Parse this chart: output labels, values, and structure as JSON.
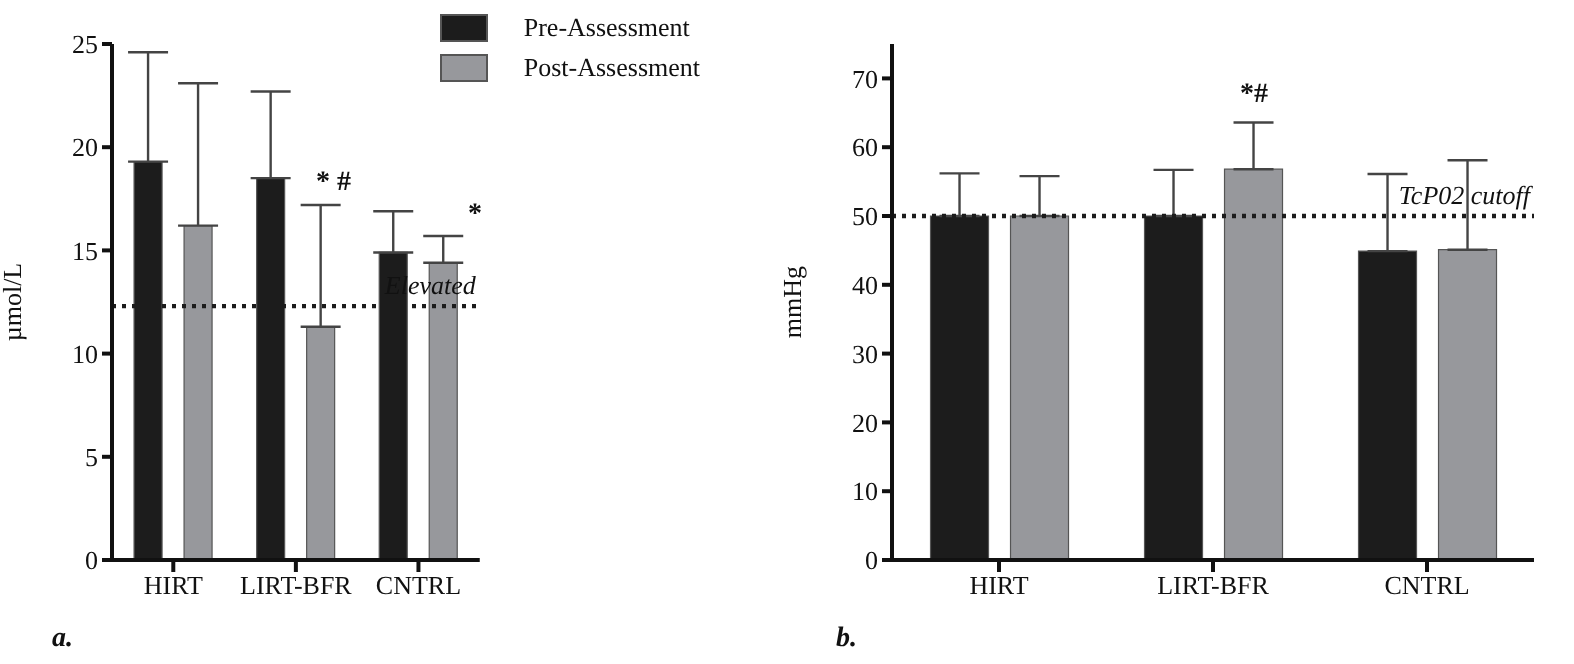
{
  "chart_data": [
    {
      "type": "bar",
      "categories": [
        "HIRT",
        "LIRT-BFR",
        "CNTRL"
      ],
      "ylabel": "µmol/L",
      "ylim": [
        0,
        25
      ],
      "yticks": [
        0,
        5,
        10,
        15,
        20,
        25
      ],
      "grid": false,
      "legend": "top right",
      "series": [
        {
          "name": "Pre-Assessment",
          "color": "#1c1c1c",
          "values": [
            19.3,
            18.5,
            14.9
          ],
          "errors": [
            [
              19.3,
              24.6
            ],
            [
              18.5,
              22.7
            ],
            [
              14.9,
              16.9
            ]
          ]
        },
        {
          "name": "Post-Assessment",
          "color": "#97989c",
          "values": [
            16.2,
            11.3,
            14.4
          ],
          "errors": [
            [
              16.2,
              23.1
            ],
            [
              11.3,
              17.2
            ],
            [
              14.4,
              15.7
            ]
          ]
        }
      ],
      "ref_lines": [
        {
          "axis": "y",
          "value": 12.3,
          "label": "Elevated",
          "line_style": "dotted",
          "color": "#1c1c1c"
        }
      ],
      "annotations": [
        "* #",
        "*",
        "a."
      ]
    },
    {
      "type": "bar",
      "categories": [
        "HIRT",
        "LIRT-BFR",
        "CNTRL"
      ],
      "ylabel": "mmHg",
      "ylim": [
        0,
        75
      ],
      "yticks": [
        0,
        10,
        20,
        30,
        40,
        50,
        60,
        70
      ],
      "grid": false,
      "legend": false,
      "series": [
        {
          "color": "#1c1c1c",
          "values": [
            50,
            50,
            44.9
          ],
          "errors": [
            [
              50,
              56.2
            ],
            [
              50,
              56.7
            ],
            [
              44.9,
              56.1
            ]
          ]
        },
        {
          "color": "#97989c",
          "values": [
            50,
            56.8,
            45.1
          ],
          "errors": [
            [
              50,
              55.8
            ],
            [
              56.8,
              63.6
            ],
            [
              45.1,
              58.1
            ]
          ]
        }
      ],
      "ref_lines": [
        {
          "axis": "y",
          "value": 50,
          "label": "TcP02 cutoff",
          "line_style": "dotted",
          "color": "#1c1c1c"
        }
      ],
      "annotations": [
        "*#",
        "b."
      ]
    }
  ]
}
